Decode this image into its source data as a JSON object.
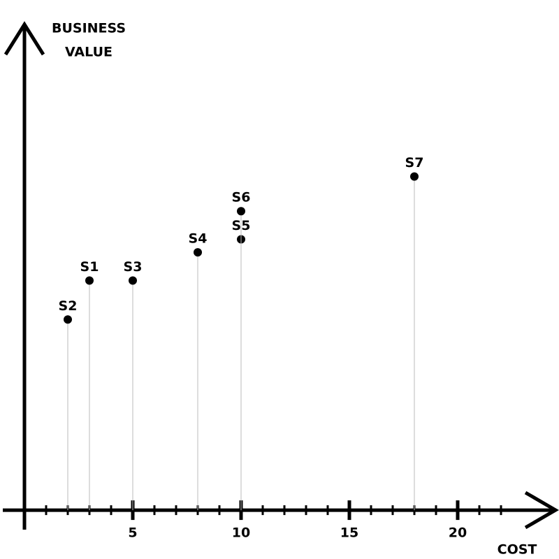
{
  "chart_data": {
    "type": "scatter",
    "xlabel": "COST",
    "ylabel": [
      "BUSINESS",
      "VALUE"
    ],
    "xlim": [
      -1,
      24.5
    ],
    "ylim": [
      -0.9,
      22.4
    ],
    "xticks": [
      5,
      10,
      15,
      20
    ],
    "xminor_ticks": [
      1,
      2,
      3,
      4,
      6,
      7,
      8,
      9,
      11,
      12,
      13,
      14,
      16,
      17,
      18,
      19,
      21,
      22
    ],
    "color": "#000000",
    "stem_color": "#bbbbbb",
    "series": [
      {
        "labels": [
          "S1",
          "S2",
          "S3",
          "S4",
          "S5",
          "S6",
          "S7"
        ],
        "x": [
          3,
          2,
          5,
          8,
          10,
          10,
          18
        ],
        "values": [
          10.6,
          8.8,
          10.6,
          11.9,
          12.5,
          13.8,
          15.4
        ]
      }
    ]
  }
}
